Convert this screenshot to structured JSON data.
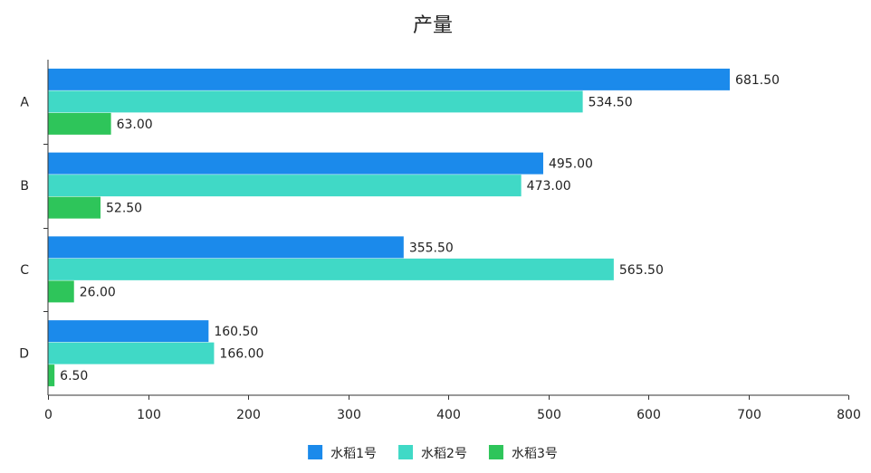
{
  "chart_data": {
    "type": "bar",
    "orientation": "horizontal",
    "title": "产量",
    "categories": [
      "A",
      "B",
      "C",
      "D"
    ],
    "series": [
      {
        "name": "水稻1号",
        "color": "#1b8aeb",
        "values": [
          681.5,
          495.0,
          355.5,
          160.5
        ]
      },
      {
        "name": "水稻2号",
        "color": "#40d9c6",
        "values": [
          534.5,
          473.0,
          565.5,
          166.0
        ]
      },
      {
        "name": "水稻3号",
        "color": "#2ec55a",
        "values": [
          63.0,
          52.5,
          26.0,
          6.5
        ]
      }
    ],
    "value_labels": [
      [
        "681.50",
        "495.00",
        "355.50",
        "160.50"
      ],
      [
        "534.50",
        "473.00",
        "565.50",
        "166.00"
      ],
      [
        "63.00",
        "52.50",
        "26.00",
        "6.50"
      ]
    ],
    "xlim": [
      0,
      800
    ],
    "xticks": [
      0,
      100,
      200,
      300,
      400,
      500,
      600,
      700,
      800
    ],
    "grid": false,
    "legend_position": "bottom-center"
  }
}
